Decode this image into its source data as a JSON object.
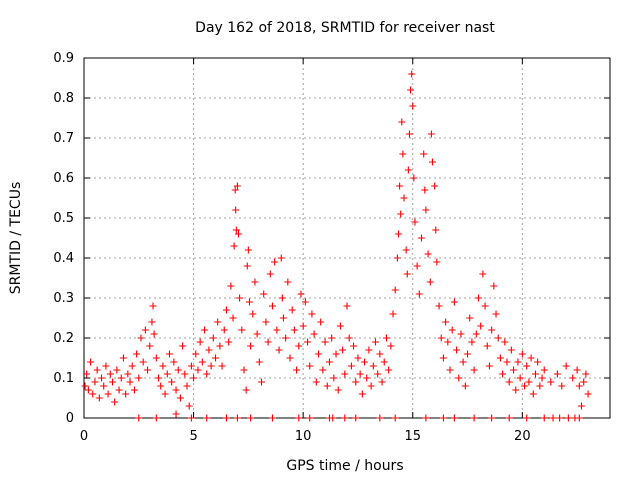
{
  "chart_data": {
    "type": "scatter",
    "title": "Day 162 of 2018, SRMTID for receiver nast",
    "xlabel": "GPS time / hours",
    "ylabel": "SRMTID / TECUs",
    "xlim": [
      0,
      24
    ],
    "ylim": [
      0,
      0.9
    ],
    "xticks": [
      0,
      5,
      10,
      15,
      20
    ],
    "xtick_labels": [
      "0",
      "5",
      "10",
      "15",
      "20"
    ],
    "yticks": [
      0,
      0.1,
      0.2,
      0.3,
      0.4,
      0.5,
      0.6,
      0.7,
      0.8,
      0.9
    ],
    "ytick_labels": [
      "0",
      "0.1",
      "0.2",
      "0.3",
      "0.4",
      "0.5",
      "0.6",
      "0.7",
      "0.8",
      "0.9"
    ],
    "grid": true,
    "marker": "+",
    "color": "#ff0000",
    "series": [
      {
        "name": "SRMTID",
        "points": [
          [
            0.05,
            0.08
          ],
          [
            0.12,
            0.11
          ],
          [
            0.2,
            0.07
          ],
          [
            0.3,
            0.14
          ],
          [
            0.4,
            0.06
          ],
          [
            0.5,
            0.09
          ],
          [
            0.6,
            0.12
          ],
          [
            0.7,
            0.05
          ],
          [
            0.8,
            0.1
          ],
          [
            0.9,
            0.08
          ],
          [
            1.0,
            0.13
          ],
          [
            1.1,
            0.06
          ],
          [
            1.2,
            0.11
          ],
          [
            1.3,
            0.09
          ],
          [
            1.4,
            0.04
          ],
          [
            1.5,
            0.12
          ],
          [
            1.6,
            0.07
          ],
          [
            1.7,
            0.1
          ],
          [
            1.8,
            0.15
          ],
          [
            1.9,
            0.06
          ],
          [
            2.0,
            0.11
          ],
          [
            2.1,
            0.09
          ],
          [
            2.2,
            0.13
          ],
          [
            2.3,
            0.07
          ],
          [
            2.4,
            0.16
          ],
          [
            2.5,
            0.1
          ],
          [
            2.6,
            0.2
          ],
          [
            2.7,
            0.14
          ],
          [
            2.8,
            0.22
          ],
          [
            2.9,
            0.12
          ],
          [
            3.0,
            0.18
          ],
          [
            3.1,
            0.24
          ],
          [
            3.15,
            0.28
          ],
          [
            3.2,
            0.21
          ],
          [
            3.3,
            0.15
          ],
          [
            3.4,
            0.1
          ],
          [
            3.5,
            0.08
          ],
          [
            3.6,
            0.13
          ],
          [
            3.7,
            0.06
          ],
          [
            3.8,
            0.11
          ],
          [
            3.9,
            0.16
          ],
          [
            4.0,
            0.09
          ],
          [
            4.1,
            0.14
          ],
          [
            4.2,
            0.07
          ],
          [
            4.3,
            0.12
          ],
          [
            4.4,
            0.05
          ],
          [
            4.5,
            0.18
          ],
          [
            4.6,
            0.11
          ],
          [
            4.7,
            0.08
          ],
          [
            4.8,
            0.03
          ],
          [
            4.9,
            0.13
          ],
          [
            5.0,
            0.1
          ],
          [
            5.1,
            0.16
          ],
          [
            5.2,
            0.12
          ],
          [
            5.3,
            0.19
          ],
          [
            5.4,
            0.14
          ],
          [
            5.5,
            0.22
          ],
          [
            5.6,
            0.11
          ],
          [
            5.7,
            0.17
          ],
          [
            5.8,
            0.13
          ],
          [
            5.9,
            0.2
          ],
          [
            6.0,
            0.15
          ],
          [
            6.1,
            0.24
          ],
          [
            6.2,
            0.18
          ],
          [
            6.3,
            0.13
          ],
          [
            6.4,
            0.22
          ],
          [
            6.5,
            0.27
          ],
          [
            6.6,
            0.19
          ],
          [
            6.7,
            0.33
          ],
          [
            6.8,
            0.25
          ],
          [
            6.85,
            0.43
          ],
          [
            6.9,
            0.57
          ],
          [
            6.92,
            0.52
          ],
          [
            6.95,
            0.47
          ],
          [
            7.0,
            0.58
          ],
          [
            7.05,
            0.46
          ],
          [
            7.1,
            0.3
          ],
          [
            7.2,
            0.22
          ],
          [
            7.3,
            0.12
          ],
          [
            7.4,
            0.07
          ],
          [
            7.45,
            0.38
          ],
          [
            7.5,
            0.42
          ],
          [
            7.55,
            0.29
          ],
          [
            7.6,
            0.18
          ],
          [
            7.7,
            0.26
          ],
          [
            7.8,
            0.34
          ],
          [
            7.9,
            0.21
          ],
          [
            8.0,
            0.14
          ],
          [
            8.1,
            0.09
          ],
          [
            8.2,
            0.31
          ],
          [
            8.3,
            0.24
          ],
          [
            8.4,
            0.19
          ],
          [
            8.5,
            0.36
          ],
          [
            8.6,
            0.28
          ],
          [
            8.7,
            0.39
          ],
          [
            8.8,
            0.22
          ],
          [
            8.9,
            0.17
          ],
          [
            9.0,
            0.4
          ],
          [
            9.05,
            0.3
          ],
          [
            9.1,
            0.25
          ],
          [
            9.2,
            0.2
          ],
          [
            9.3,
            0.34
          ],
          [
            9.4,
            0.15
          ],
          [
            9.5,
            0.27
          ],
          [
            9.6,
            0.22
          ],
          [
            9.7,
            0.12
          ],
          [
            9.8,
            0.18
          ],
          [
            9.9,
            0.31
          ],
          [
            10.0,
            0.23
          ],
          [
            10.1,
            0.29
          ],
          [
            10.2,
            0.19
          ],
          [
            10.3,
            0.13
          ],
          [
            10.4,
            0.26
          ],
          [
            10.5,
            0.21
          ],
          [
            10.6,
            0.09
          ],
          [
            10.7,
            0.16
          ],
          [
            10.8,
            0.24
          ],
          [
            10.9,
            0.12
          ],
          [
            11.0,
            0.19
          ],
          [
            11.1,
            0.08
          ],
          [
            11.2,
            0.14
          ],
          [
            11.3,
            0.2
          ],
          [
            11.4,
            0.1
          ],
          [
            11.5,
            0.16
          ],
          [
            11.6,
            0.07
          ],
          [
            11.7,
            0.23
          ],
          [
            11.8,
            0.17
          ],
          [
            11.9,
            0.11
          ],
          [
            12.0,
            0.28
          ],
          [
            12.1,
            0.2
          ],
          [
            12.2,
            0.13
          ],
          [
            12.3,
            0.18
          ],
          [
            12.4,
            0.09
          ],
          [
            12.5,
            0.15
          ],
          [
            12.6,
            0.11
          ],
          [
            12.7,
            0.06
          ],
          [
            12.8,
            0.14
          ],
          [
            12.9,
            0.1
          ],
          [
            13.0,
            0.17
          ],
          [
            13.1,
            0.08
          ],
          [
            13.2,
            0.13
          ],
          [
            13.3,
            0.19
          ],
          [
            13.4,
            0.11
          ],
          [
            13.5,
            0.16
          ],
          [
            13.6,
            0.09
          ],
          [
            13.7,
            0.14
          ],
          [
            13.8,
            0.2
          ],
          [
            13.9,
            0.12
          ],
          [
            14.0,
            0.18
          ],
          [
            14.1,
            0.26
          ],
          [
            14.2,
            0.32
          ],
          [
            14.3,
            0.4
          ],
          [
            14.35,
            0.46
          ],
          [
            14.4,
            0.58
          ],
          [
            14.45,
            0.51
          ],
          [
            14.5,
            0.74
          ],
          [
            14.55,
            0.66
          ],
          [
            14.6,
            0.55
          ],
          [
            14.7,
            0.42
          ],
          [
            14.75,
            0.36
          ],
          [
            14.8,
            0.62
          ],
          [
            14.85,
            0.71
          ],
          [
            14.9,
            0.82
          ],
          [
            14.95,
            0.86
          ],
          [
            15.0,
            0.78
          ],
          [
            15.05,
            0.6
          ],
          [
            15.1,
            0.49
          ],
          [
            15.2,
            0.38
          ],
          [
            15.3,
            0.31
          ],
          [
            15.4,
            0.45
          ],
          [
            15.5,
            0.66
          ],
          [
            15.55,
            0.57
          ],
          [
            15.6,
            0.52
          ],
          [
            15.7,
            0.41
          ],
          [
            15.8,
            0.34
          ],
          [
            15.85,
            0.71
          ],
          [
            15.9,
            0.64
          ],
          [
            16.0,
            0.58
          ],
          [
            16.05,
            0.47
          ],
          [
            16.1,
            0.39
          ],
          [
            16.2,
            0.28
          ],
          [
            16.3,
            0.2
          ],
          [
            16.4,
            0.15
          ],
          [
            16.5,
            0.24
          ],
          [
            16.6,
            0.19
          ],
          [
            16.7,
            0.12
          ],
          [
            16.8,
            0.22
          ],
          [
            16.9,
            0.29
          ],
          [
            17.0,
            0.17
          ],
          [
            17.1,
            0.1
          ],
          [
            17.2,
            0.21
          ],
          [
            17.3,
            0.14
          ],
          [
            17.4,
            0.08
          ],
          [
            17.5,
            0.16
          ],
          [
            17.6,
            0.25
          ],
          [
            17.7,
            0.19
          ],
          [
            17.8,
            0.12
          ],
          [
            17.9,
            0.21
          ],
          [
            18.0,
            0.3
          ],
          [
            18.1,
            0.23
          ],
          [
            18.2,
            0.36
          ],
          [
            18.3,
            0.28
          ],
          [
            18.4,
            0.18
          ],
          [
            18.5,
            0.13
          ],
          [
            18.6,
            0.22
          ],
          [
            18.7,
            0.33
          ],
          [
            18.8,
            0.26
          ],
          [
            18.9,
            0.2
          ],
          [
            19.0,
            0.15
          ],
          [
            19.1,
            0.11
          ],
          [
            19.2,
            0.19
          ],
          [
            19.3,
            0.14
          ],
          [
            19.4,
            0.09
          ],
          [
            19.5,
            0.17
          ],
          [
            19.6,
            0.12
          ],
          [
            19.7,
            0.07
          ],
          [
            19.8,
            0.14
          ],
          [
            19.9,
            0.1
          ],
          [
            20.0,
            0.16
          ],
          [
            20.1,
            0.08
          ],
          [
            20.2,
            0.13
          ],
          [
            20.3,
            0.09
          ],
          [
            20.4,
            0.15
          ],
          [
            20.5,
            0.06
          ],
          [
            20.6,
            0.11
          ],
          [
            20.7,
            0.14
          ],
          [
            20.8,
            0.08
          ],
          [
            20.9,
            0.1
          ],
          [
            21.0,
            0.12
          ],
          [
            21.3,
            0.09
          ],
          [
            21.6,
            0.11
          ],
          [
            21.8,
            0.08
          ],
          [
            22.0,
            0.13
          ],
          [
            22.3,
            0.1
          ],
          [
            22.5,
            0.12
          ],
          [
            22.6,
            0.08
          ],
          [
            22.7,
            0.03
          ],
          [
            22.8,
            0.09
          ],
          [
            22.9,
            0.11
          ],
          [
            23.0,
            0.06
          ],
          [
            4.2,
            0.01
          ],
          [
            4.9,
            0.0
          ],
          [
            5.6,
            0.0
          ],
          [
            6.5,
            0.0
          ],
          [
            7.0,
            0.0
          ],
          [
            7.6,
            0.0
          ],
          [
            8.6,
            0.0
          ],
          [
            9.8,
            0.0
          ],
          [
            10.3,
            0.0
          ],
          [
            11.2,
            0.0
          ],
          [
            11.35,
            0.0
          ],
          [
            11.9,
            0.0
          ],
          [
            12.4,
            0.0
          ],
          [
            13.5,
            0.0
          ],
          [
            14.2,
            0.0
          ],
          [
            15.6,
            0.0
          ],
          [
            16.4,
            0.0
          ],
          [
            16.9,
            0.0
          ],
          [
            17.8,
            0.0
          ],
          [
            18.6,
            0.0
          ],
          [
            19.4,
            0.0
          ],
          [
            20.2,
            0.0
          ],
          [
            21.0,
            0.0
          ],
          [
            21.4,
            0.0
          ],
          [
            21.7,
            0.0
          ],
          [
            22.1,
            0.0
          ],
          [
            22.4,
            0.0
          ],
          [
            22.6,
            0.0
          ],
          [
            3.3,
            0.0
          ],
          [
            2.5,
            0.0
          ]
        ]
      }
    ]
  }
}
